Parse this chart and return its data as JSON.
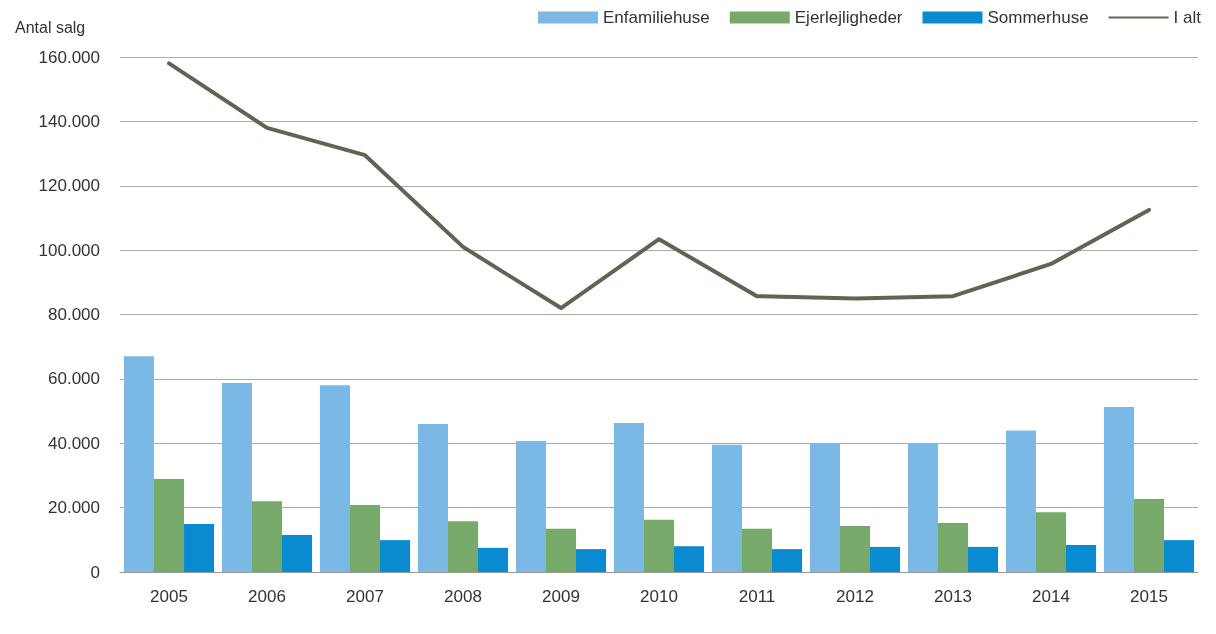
{
  "chart_data": {
    "type": "bar",
    "ylabel": "Antal salg",
    "categories": [
      "2005",
      "2006",
      "2007",
      "2008",
      "2009",
      "2010",
      "2011",
      "2012",
      "2013",
      "2014",
      "2015"
    ],
    "series": [
      {
        "name": "Enfamiliehuse",
        "color": "#7ab8e6",
        "values": [
          67000,
          58700,
          58000,
          46000,
          40700,
          46300,
          39500,
          40000,
          40000,
          44000,
          51300
        ]
      },
      {
        "name": "Ejerlejligheder",
        "color": "#77a96b",
        "values": [
          28900,
          22000,
          20800,
          15800,
          13400,
          16200,
          13400,
          14300,
          15200,
          18600,
          22700
        ]
      },
      {
        "name": "Sommerhuse",
        "color": "#0a8ad0",
        "values": [
          14900,
          11500,
          9900,
          7500,
          7100,
          8000,
          7100,
          7800,
          7800,
          8400,
          9900
        ]
      },
      {
        "name": "I alt",
        "type": "line",
        "color": "#5e6553",
        "values": [
          158000,
          138000,
          129500,
          101000,
          82000,
          103400,
          85700,
          85000,
          85700,
          95700,
          112500
        ]
      }
    ],
    "ylim": [
      0,
      160000
    ],
    "yticks": [
      {
        "value": 0,
        "label": "0"
      },
      {
        "value": 20000,
        "label": "20.000"
      },
      {
        "value": 40000,
        "label": "40.000"
      },
      {
        "value": 60000,
        "label": "60.000"
      },
      {
        "value": 80000,
        "label": "80.000"
      },
      {
        "value": 100000,
        "label": "100.000"
      },
      {
        "value": 120000,
        "label": "120.000"
      },
      {
        "value": 140000,
        "label": "140.000"
      },
      {
        "value": 160000,
        "label": "160.000"
      }
    ],
    "grid": "y",
    "legend": "top right",
    "marker": "none",
    "line_style": "solid"
  }
}
